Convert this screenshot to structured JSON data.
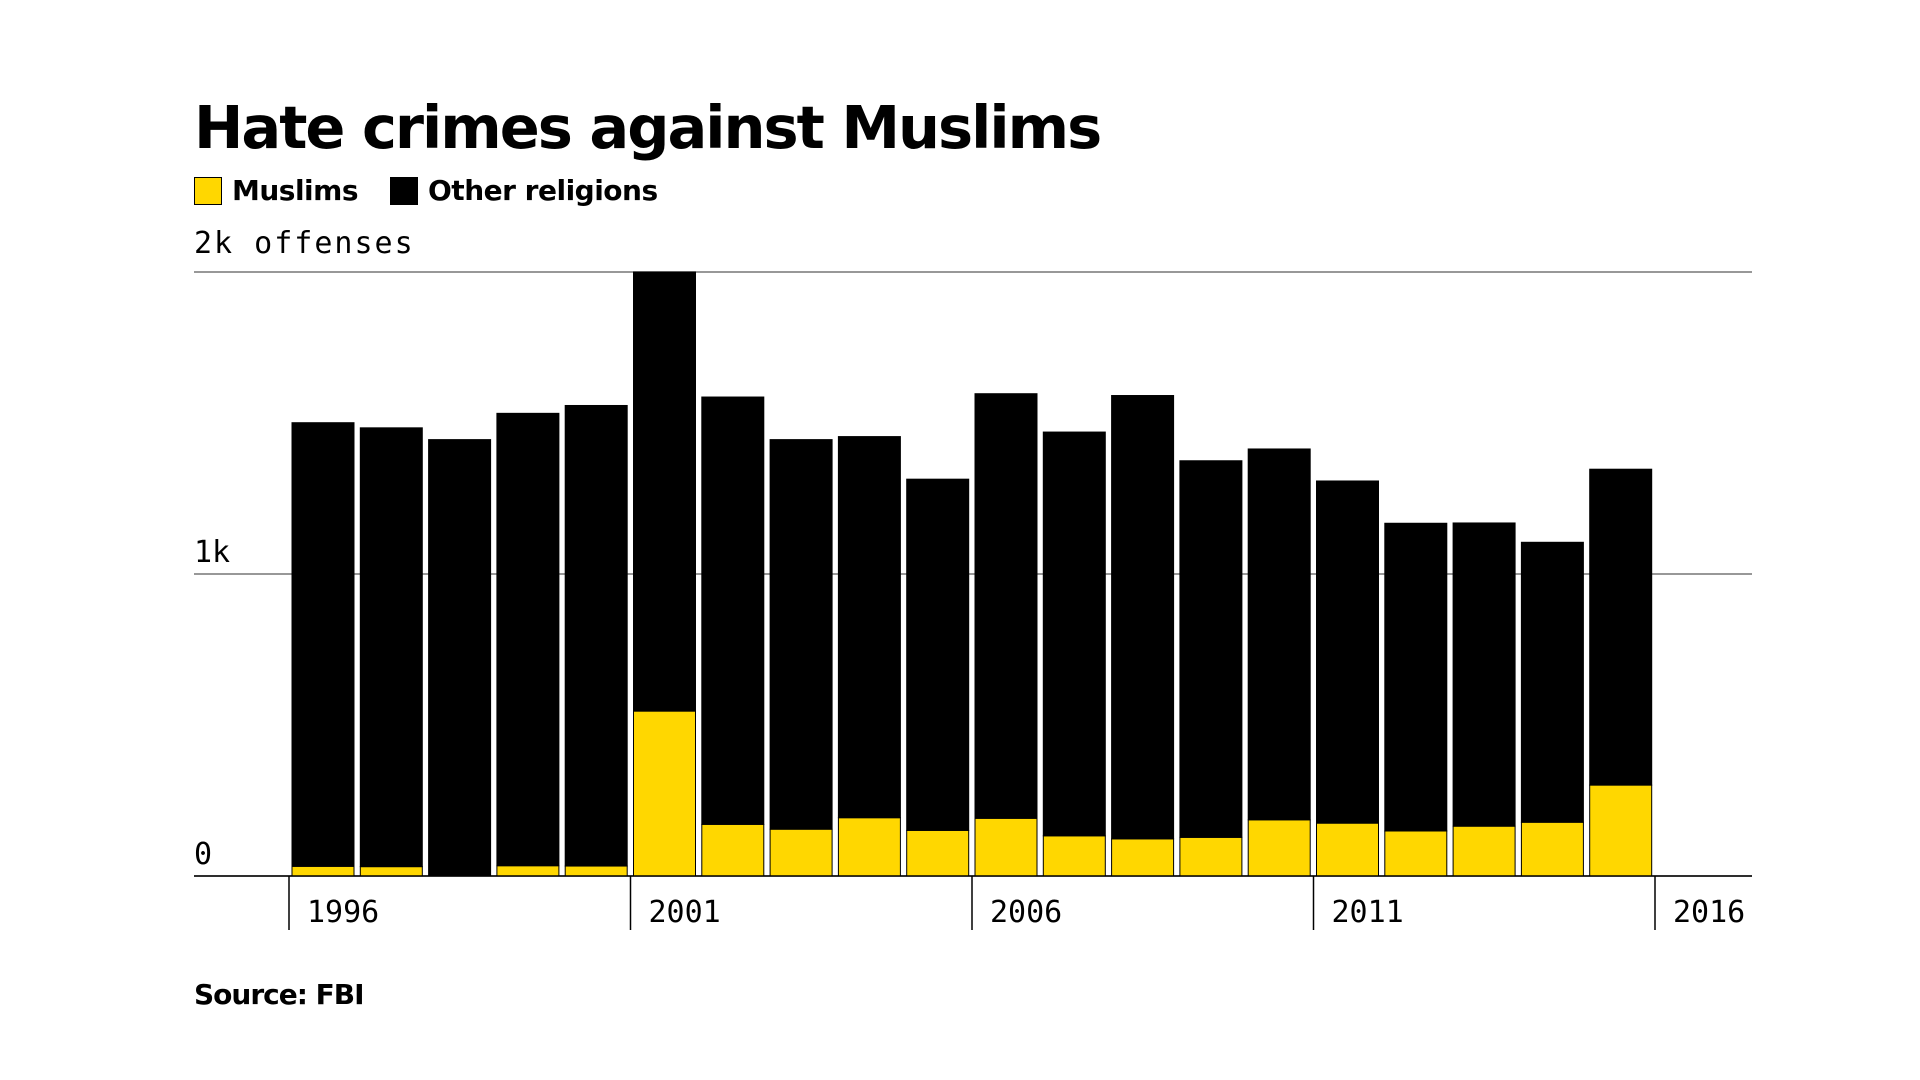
{
  "chart_data": {
    "type": "bar",
    "stacked": true,
    "title": "Hate crimes against Muslims",
    "ylabel": "2k offenses",
    "ylim": [
      0,
      2000
    ],
    "yticks": [
      {
        "value": 0,
        "label": "0"
      },
      {
        "value": 1000,
        "label": "1k"
      },
      {
        "value": 2000,
        "label": "2k offenses"
      }
    ],
    "xticks": [
      "1996",
      "2001",
      "2006",
      "2011",
      "2016"
    ],
    "categories": [
      "1996",
      "1997",
      "1998",
      "1999",
      "2000",
      "2001",
      "2002",
      "2003",
      "2004",
      "2005",
      "2006",
      "2007",
      "2008",
      "2009",
      "2010",
      "2011",
      "2012",
      "2013",
      "2014",
      "2015"
    ],
    "series": [
      {
        "name": "Muslims",
        "color": "#FFD700",
        "values": [
          32,
          31,
          0,
          34,
          33,
          546,
          171,
          155,
          193,
          151,
          191,
          133,
          123,
          128,
          186,
          175,
          149,
          165,
          178,
          301
        ]
      },
      {
        "name": "Other religions",
        "color": "#000000",
        "values": [
          1469,
          1453,
          1445,
          1498,
          1525,
          1454,
          1415,
          1290,
          1262,
          1163,
          1406,
          1337,
          1468,
          1247,
          1228,
          1133,
          1019,
          1004,
          927,
          1046
        ]
      }
    ],
    "grid": true,
    "legend": "top-left"
  },
  "source": "Source: FBI"
}
